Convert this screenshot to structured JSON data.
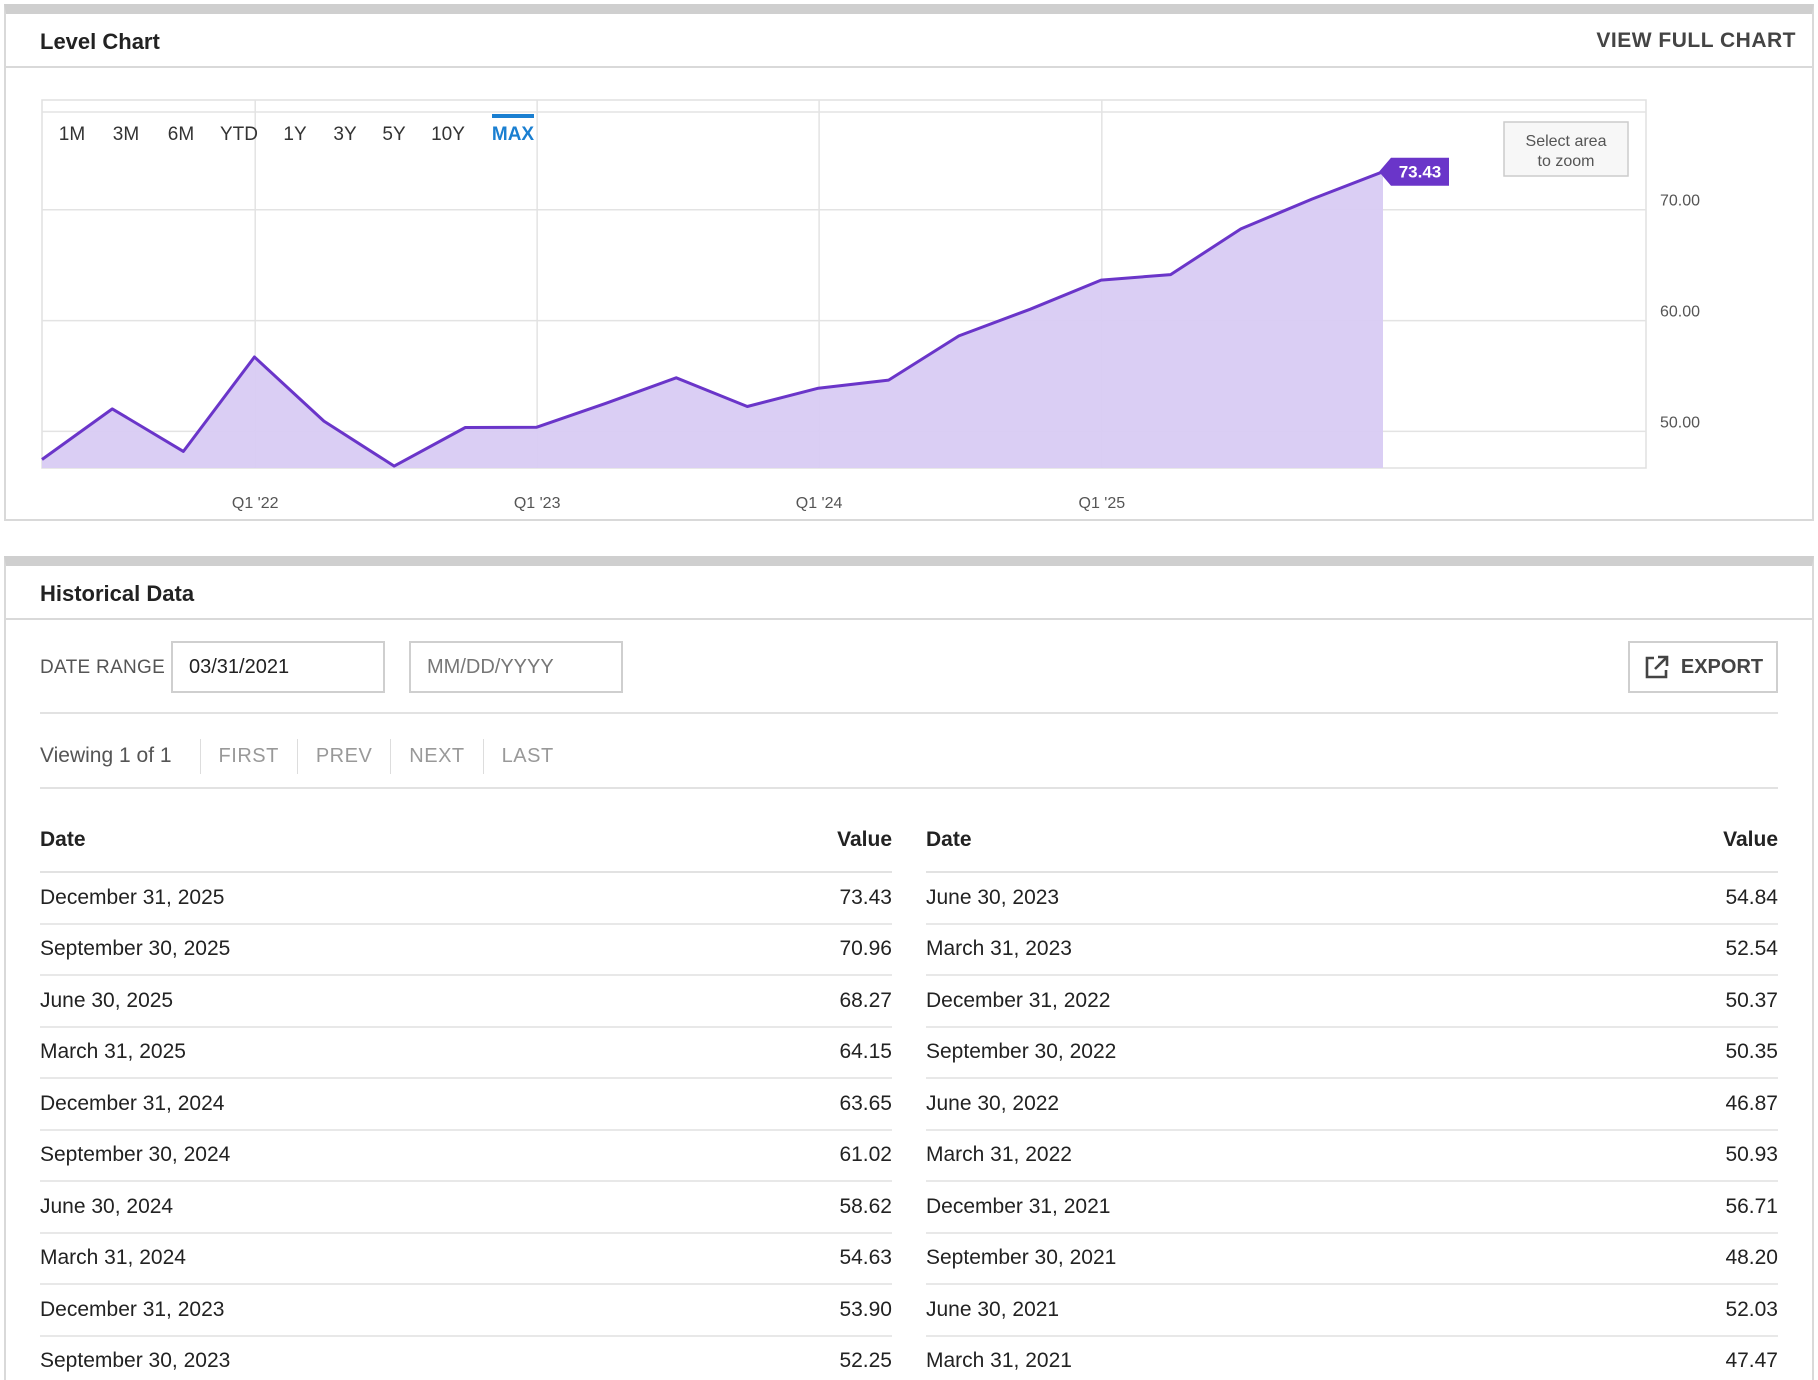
{
  "chart_panel": {
    "title": "Level Chart",
    "view_full_label": "VIEW FULL CHART",
    "ranges": [
      "1M",
      "3M",
      "6M",
      "YTD",
      "1Y",
      "3Y",
      "5Y",
      "10Y",
      "MAX"
    ],
    "active_range": "MAX",
    "zoom_hint_line1": "Select area",
    "zoom_hint_line2": "to zoom",
    "last_value_label": "73.43"
  },
  "chart_data": {
    "type": "area",
    "title": "Level Chart",
    "x": [
      "2021-03-31",
      "2021-06-30",
      "2021-09-30",
      "2021-12-31",
      "2022-03-31",
      "2022-06-30",
      "2022-09-30",
      "2022-12-31",
      "2023-03-31",
      "2023-06-30",
      "2023-09-30",
      "2023-12-31",
      "2024-03-31",
      "2024-06-30",
      "2024-09-30",
      "2024-12-31",
      "2025-03-31",
      "2025-06-30",
      "2025-09-30",
      "2025-12-31"
    ],
    "series": [
      {
        "values": [
          47.47,
          52.03,
          48.2,
          56.71,
          50.93,
          46.87,
          50.35,
          50.37,
          52.54,
          54.84,
          52.25,
          53.9,
          54.63,
          58.62,
          61.02,
          63.65,
          64.15,
          68.27,
          70.96,
          73.43
        ]
      }
    ],
    "x_ticks": [
      {
        "date": "2022-01-01",
        "label": "Q1 '22"
      },
      {
        "date": "2023-01-01",
        "label": "Q1 '23"
      },
      {
        "date": "2024-01-01",
        "label": "Q1 '24"
      },
      {
        "date": "2025-01-01",
        "label": "Q1 '25"
      }
    ],
    "y_ticks": [
      50,
      60,
      70
    ],
    "y_tick_labels": [
      "50.00",
      "60.00",
      "70.00"
    ],
    "ylim": [
      46.7,
      79.9
    ],
    "grid": true,
    "line_color": "#6a35c9",
    "fill_color": "#d8cbf3",
    "label_color": "#6a35c9"
  },
  "historical": {
    "title": "Historical Data",
    "date_range_label": "DATE RANGE",
    "from_value": "03/31/2021",
    "to_placeholder": "MM/DD/YYYY",
    "export_label": "EXPORT",
    "viewing_text": "Viewing 1 of 1",
    "pager": [
      "FIRST",
      "PREV",
      "NEXT",
      "LAST"
    ],
    "col_date": "Date",
    "col_value": "Value",
    "left_rows": [
      {
        "date": "December 31, 2025",
        "value": "73.43"
      },
      {
        "date": "September 30, 2025",
        "value": "70.96"
      },
      {
        "date": "June 30, 2025",
        "value": "68.27"
      },
      {
        "date": "March 31, 2025",
        "value": "64.15"
      },
      {
        "date": "December 31, 2024",
        "value": "63.65"
      },
      {
        "date": "September 30, 2024",
        "value": "61.02"
      },
      {
        "date": "June 30, 2024",
        "value": "58.62"
      },
      {
        "date": "March 31, 2024",
        "value": "54.63"
      },
      {
        "date": "December 31, 2023",
        "value": "53.90"
      },
      {
        "date": "September 30, 2023",
        "value": "52.25"
      }
    ],
    "right_rows": [
      {
        "date": "June 30, 2023",
        "value": "54.84"
      },
      {
        "date": "March 31, 2023",
        "value": "52.54"
      },
      {
        "date": "December 31, 2022",
        "value": "50.37"
      },
      {
        "date": "September 30, 2022",
        "value": "50.35"
      },
      {
        "date": "June 30, 2022",
        "value": "46.87"
      },
      {
        "date": "March 31, 2022",
        "value": "50.93"
      },
      {
        "date": "December 31, 2021",
        "value": "56.71"
      },
      {
        "date": "September 30, 2021",
        "value": "48.20"
      },
      {
        "date": "June 30, 2021",
        "value": "52.03"
      },
      {
        "date": "March 31, 2021",
        "value": "47.47"
      }
    ]
  }
}
